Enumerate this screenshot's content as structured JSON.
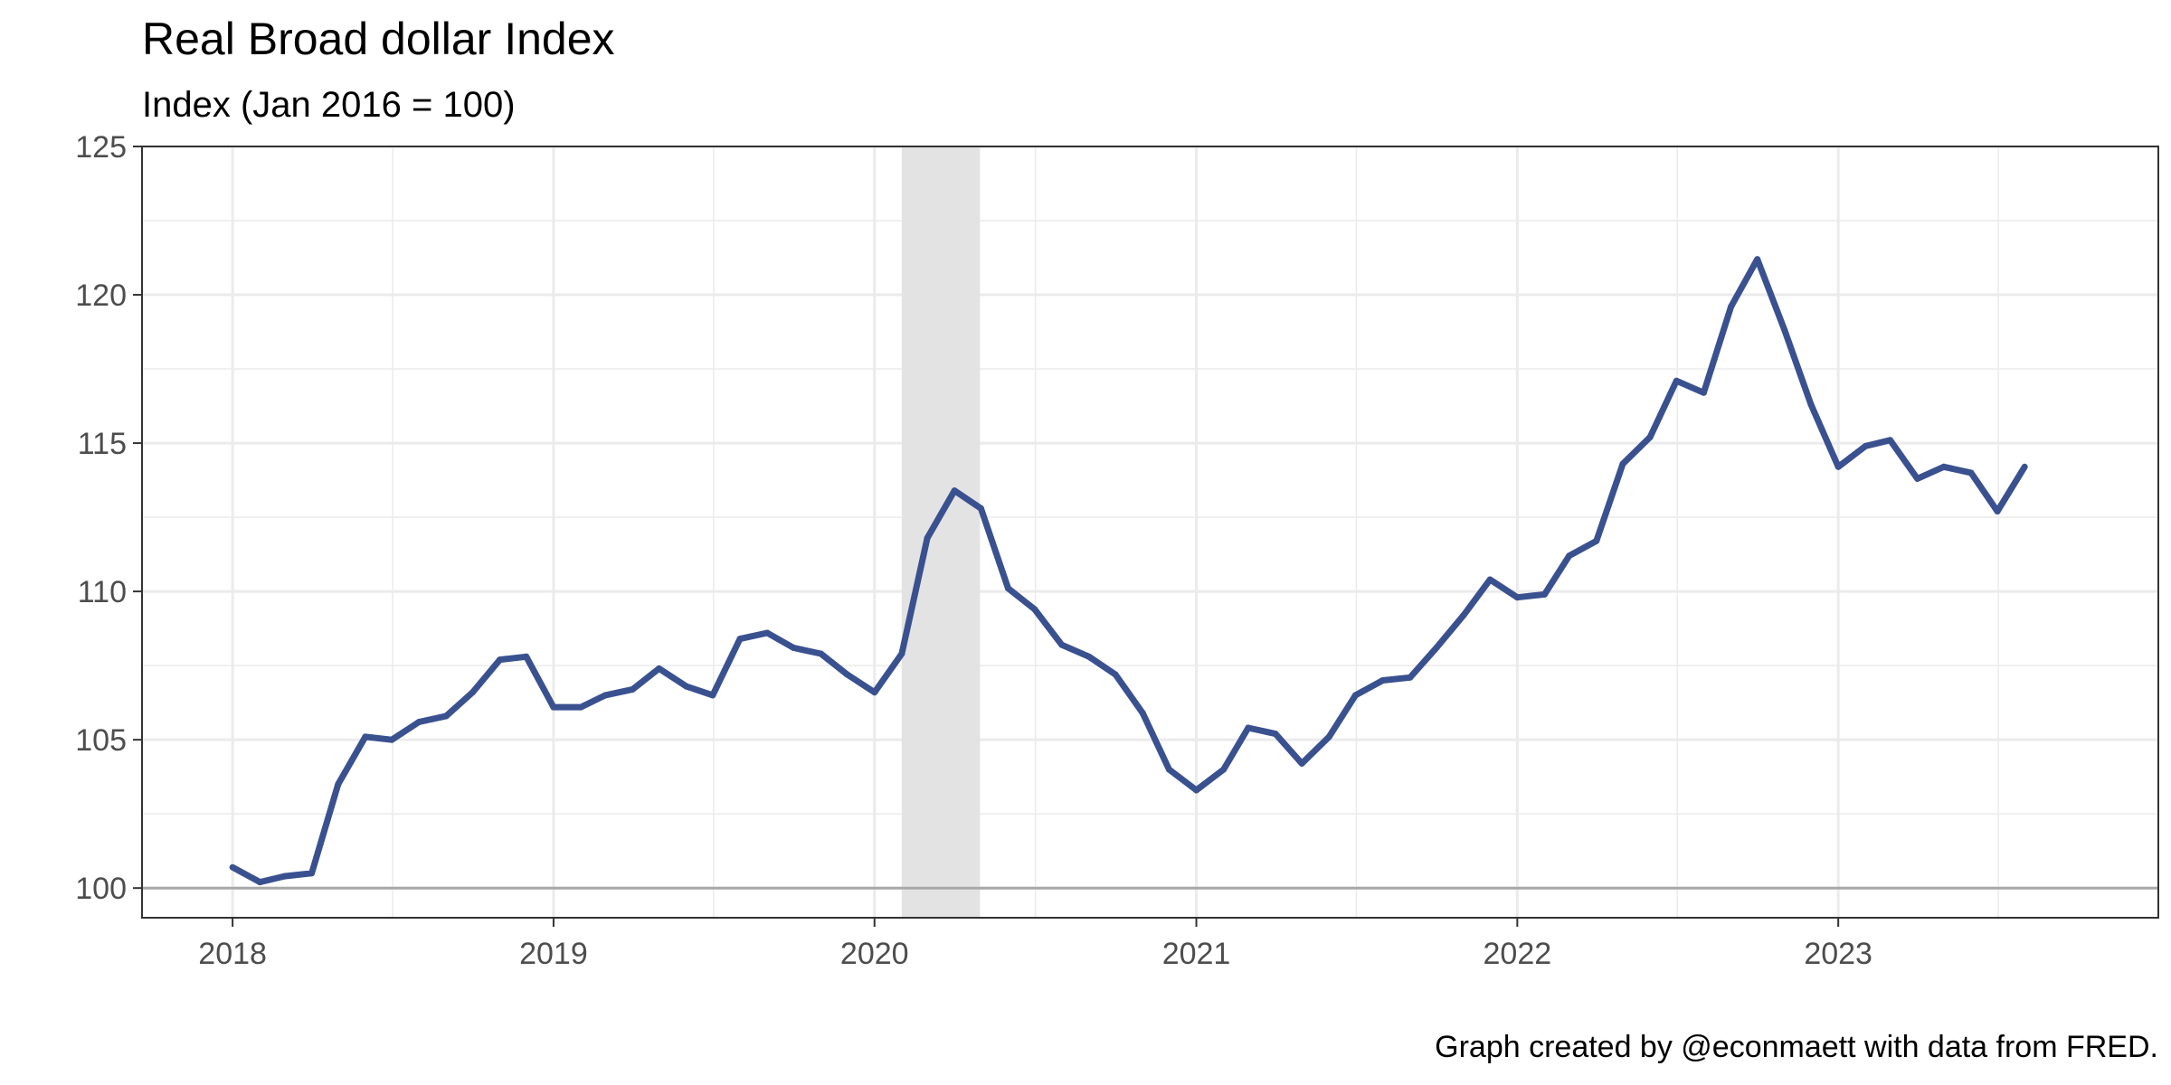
{
  "chart_data": {
    "type": "line",
    "title": "Real Broad dollar Index",
    "subtitle": "Index (Jan 2016 = 100)",
    "caption": "Graph created by @econmaett with data from FRED.",
    "xlim": [
      "2017-09-20",
      "2023-12-31"
    ],
    "ylim": [
      99.0,
      125.0
    ],
    "x_ticks": [
      "2018",
      "2019",
      "2020",
      "2021",
      "2022",
      "2023"
    ],
    "y_ticks": [
      "100",
      "105",
      "110",
      "115",
      "120",
      "125"
    ],
    "grid": true,
    "baseline": 100,
    "recession": {
      "start": "2020-02-01",
      "end": "2020-04-30"
    },
    "colors": {
      "line": "#3a5190",
      "recession": "#e3e3e3",
      "baseline": "#a8a8a8"
    },
    "series": [
      {
        "x": [
          "2018-01",
          "2018-02",
          "2018-03",
          "2018-04",
          "2018-05",
          "2018-06",
          "2018-07",
          "2018-08",
          "2018-09",
          "2018-10",
          "2018-11",
          "2018-12",
          "2019-01",
          "2019-02",
          "2019-03",
          "2019-04",
          "2019-05",
          "2019-06",
          "2019-07",
          "2019-08",
          "2019-09",
          "2019-10",
          "2019-11",
          "2019-12",
          "2020-01",
          "2020-02",
          "2020-03",
          "2020-04",
          "2020-05",
          "2020-06",
          "2020-07",
          "2020-08",
          "2020-09",
          "2020-10",
          "2020-11",
          "2020-12",
          "2021-01",
          "2021-02",
          "2021-03",
          "2021-04",
          "2021-05",
          "2021-06",
          "2021-07",
          "2021-08",
          "2021-09",
          "2021-10",
          "2021-11",
          "2021-12",
          "2022-01",
          "2022-02",
          "2022-03",
          "2022-04",
          "2022-05",
          "2022-06",
          "2022-07",
          "2022-08",
          "2022-09",
          "2022-10",
          "2022-11",
          "2022-12",
          "2023-01",
          "2023-02",
          "2023-03",
          "2023-04",
          "2023-05",
          "2023-06",
          "2023-07",
          "2023-08"
        ],
        "values": [
          100.7,
          100.2,
          100.4,
          100.5,
          103.5,
          105.1,
          105.0,
          105.6,
          105.8,
          106.6,
          107.7,
          107.8,
          106.1,
          106.1,
          106.5,
          106.7,
          107.4,
          106.8,
          106.5,
          108.4,
          108.6,
          108.1,
          107.9,
          107.2,
          106.6,
          107.9,
          111.8,
          113.4,
          112.8,
          110.1,
          109.4,
          108.2,
          107.8,
          107.2,
          105.9,
          104.0,
          103.3,
          104.0,
          105.4,
          105.2,
          104.2,
          105.1,
          106.5,
          107.0,
          107.1,
          108.1,
          109.2,
          110.4,
          109.8,
          109.9,
          111.2,
          111.7,
          114.3,
          115.2,
          117.1,
          116.7,
          119.6,
          121.2,
          118.8,
          116.3,
          114.2,
          114.9,
          115.1,
          113.8,
          114.2,
          114.0,
          112.7,
          114.2
        ]
      }
    ]
  }
}
